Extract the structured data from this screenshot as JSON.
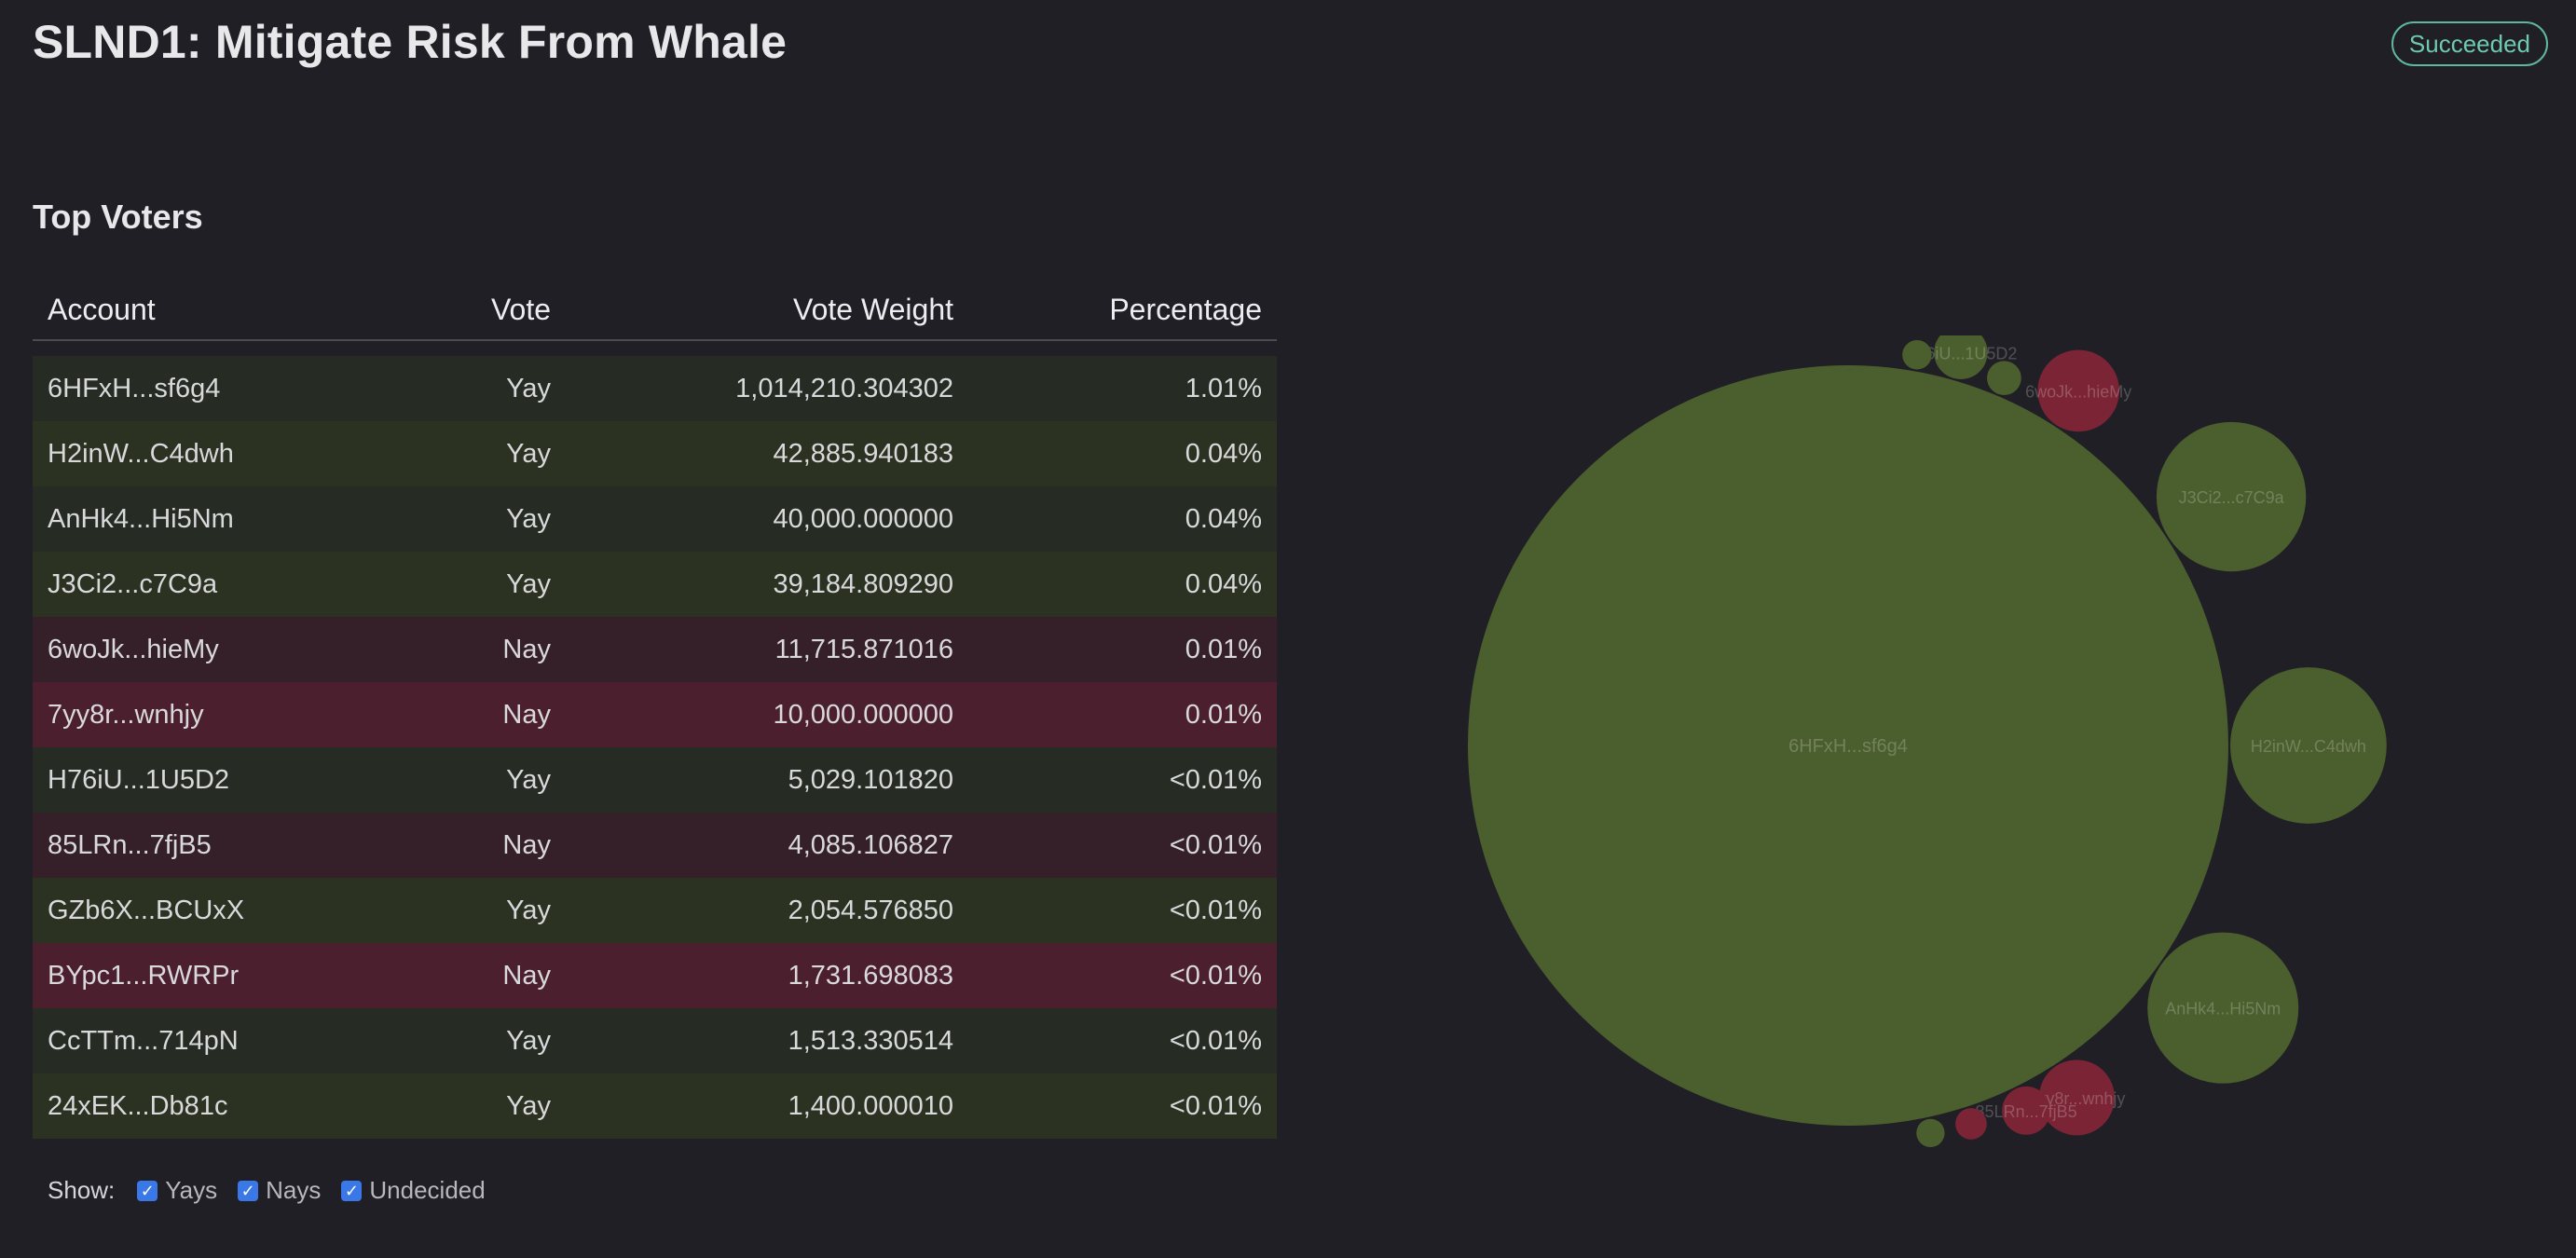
{
  "proposal": {
    "title": "SLND1: Mitigate Risk From Whale",
    "status": "Succeeded"
  },
  "top_voters": {
    "title": "Top Voters",
    "columns": {
      "account": "Account",
      "vote": "Vote",
      "weight": "Vote Weight",
      "percentage": "Percentage"
    },
    "rows": [
      {
        "account": "6HFxH...sf6g4",
        "vote": "Yay",
        "weight": "1,014,210.304302",
        "percentage": "1.01%"
      },
      {
        "account": "H2inW...C4dwh",
        "vote": "Yay",
        "weight": "42,885.940183",
        "percentage": "0.04%"
      },
      {
        "account": "AnHk4...Hi5Nm",
        "vote": "Yay",
        "weight": "40,000.000000",
        "percentage": "0.04%"
      },
      {
        "account": "J3Ci2...c7C9a",
        "vote": "Yay",
        "weight": "39,184.809290",
        "percentage": "0.04%"
      },
      {
        "account": "6woJk...hieMy",
        "vote": "Nay",
        "weight": "11,715.871016",
        "percentage": "0.01%"
      },
      {
        "account": "7yy8r...wnhjy",
        "vote": "Nay",
        "weight": "10,000.000000",
        "percentage": "0.01%"
      },
      {
        "account": "H76iU...1U5D2",
        "vote": "Yay",
        "weight": "5,029.101820",
        "percentage": "<0.01%"
      },
      {
        "account": "85LRn...7fjB5",
        "vote": "Nay",
        "weight": "4,085.106827",
        "percentage": "<0.01%"
      },
      {
        "account": "GZb6X...BCUxX",
        "vote": "Yay",
        "weight": "2,054.576850",
        "percentage": "<0.01%"
      },
      {
        "account": "BYpc1...RWRPr",
        "vote": "Nay",
        "weight": "1,731.698083",
        "percentage": "<0.01%"
      },
      {
        "account": "CcTTm...714pN",
        "vote": "Yay",
        "weight": "1,513.330514",
        "percentage": "<0.01%"
      },
      {
        "account": "24xEK...Db81c",
        "vote": "Yay",
        "weight": "1,400.000010",
        "percentage": "<0.01%"
      }
    ]
  },
  "filters": {
    "label": "Show:",
    "options": [
      {
        "label": "Yays",
        "checked": true
      },
      {
        "label": "Nays",
        "checked": true
      },
      {
        "label": "Undecided",
        "checked": true
      }
    ]
  },
  "bubbles": {
    "yay_color": "#4b5e2d",
    "nay_color": "#7a2436",
    "items": [
      {
        "label": "6HFxH...sf6g4",
        "vote": "Yay",
        "weight": 1014210.304302
      },
      {
        "label": "H2inW...C4dwh",
        "vote": "Yay",
        "weight": 42885.940183
      },
      {
        "label": "AnHk4...Hi5Nm",
        "vote": "Yay",
        "weight": 40000.0
      },
      {
        "label": "J3Ci2...c7C9a",
        "vote": "Yay",
        "weight": 39184.80929
      },
      {
        "label": "6woJk...hieMy",
        "vote": "Nay",
        "weight": 11715.871016
      },
      {
        "label": "7yy8r...wnhjy",
        "vote": "Nay",
        "weight": 10000.0
      },
      {
        "label": "H76iU...1U5D2",
        "vote": "Yay",
        "weight": 5029.10182
      },
      {
        "label": "85LRn...7fjB5",
        "vote": "Nay",
        "weight": 4085.106827
      },
      {
        "label": "GZb6X...BCUxX",
        "vote": "Yay",
        "weight": 2054.57685
      },
      {
        "label": "BYpc1...RWRPr",
        "vote": "Nay",
        "weight": 1731.698083
      },
      {
        "label": "CcTTm...714pN",
        "vote": "Yay",
        "weight": 1513.330514
      },
      {
        "label": "24xEK...Db81c",
        "vote": "Yay",
        "weight": 1400.00001
      }
    ]
  }
}
